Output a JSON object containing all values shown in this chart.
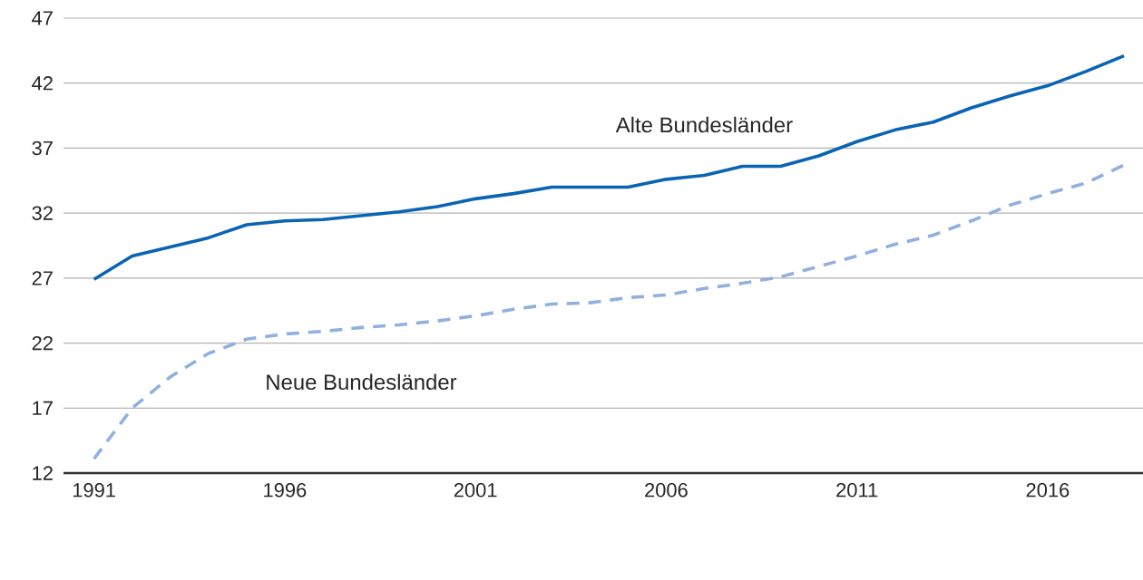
{
  "chart_data": {
    "type": "line",
    "x": [
      1991,
      1992,
      1993,
      1994,
      1995,
      1996,
      1997,
      1998,
      1999,
      2000,
      2001,
      2002,
      2003,
      2004,
      2005,
      2006,
      2007,
      2008,
      2009,
      2010,
      2011,
      2012,
      2013,
      2014,
      2015,
      2016,
      2017,
      2018
    ],
    "series": [
      {
        "name": "Alte Bundesländer",
        "color": "#0a64b4",
        "line_style": "solid",
        "values": [
          26.9,
          28.7,
          29.4,
          30.1,
          31.1,
          31.4,
          31.5,
          31.8,
          32.1,
          32.5,
          33.1,
          33.5,
          34.0,
          34.0,
          34.0,
          34.6,
          34.9,
          35.6,
          35.6,
          36.4,
          37.5,
          38.4,
          39.0,
          40.1,
          41.0,
          41.8,
          42.9,
          44.1
        ]
      },
      {
        "name": "Neue Bundesländer",
        "color": "#8fb0e0",
        "line_style": "dashed",
        "values": [
          13.1,
          17.0,
          19.4,
          21.2,
          22.3,
          22.7,
          22.9,
          23.2,
          23.4,
          23.7,
          24.1,
          24.6,
          25.0,
          25.1,
          25.5,
          25.7,
          26.2,
          26.6,
          27.1,
          27.9,
          28.7,
          29.6,
          30.3,
          31.4,
          32.6,
          33.5,
          34.3,
          35.7
        ]
      }
    ],
    "xlim": [
      1990.2,
      2018.5
    ],
    "ylim": [
      12,
      47
    ],
    "xticks": [
      1991,
      1996,
      2001,
      2006,
      2011,
      2016
    ],
    "yticks": [
      12,
      17,
      22,
      27,
      32,
      37,
      42,
      47
    ],
    "grid": "y",
    "legend": false,
    "marker": "none"
  }
}
